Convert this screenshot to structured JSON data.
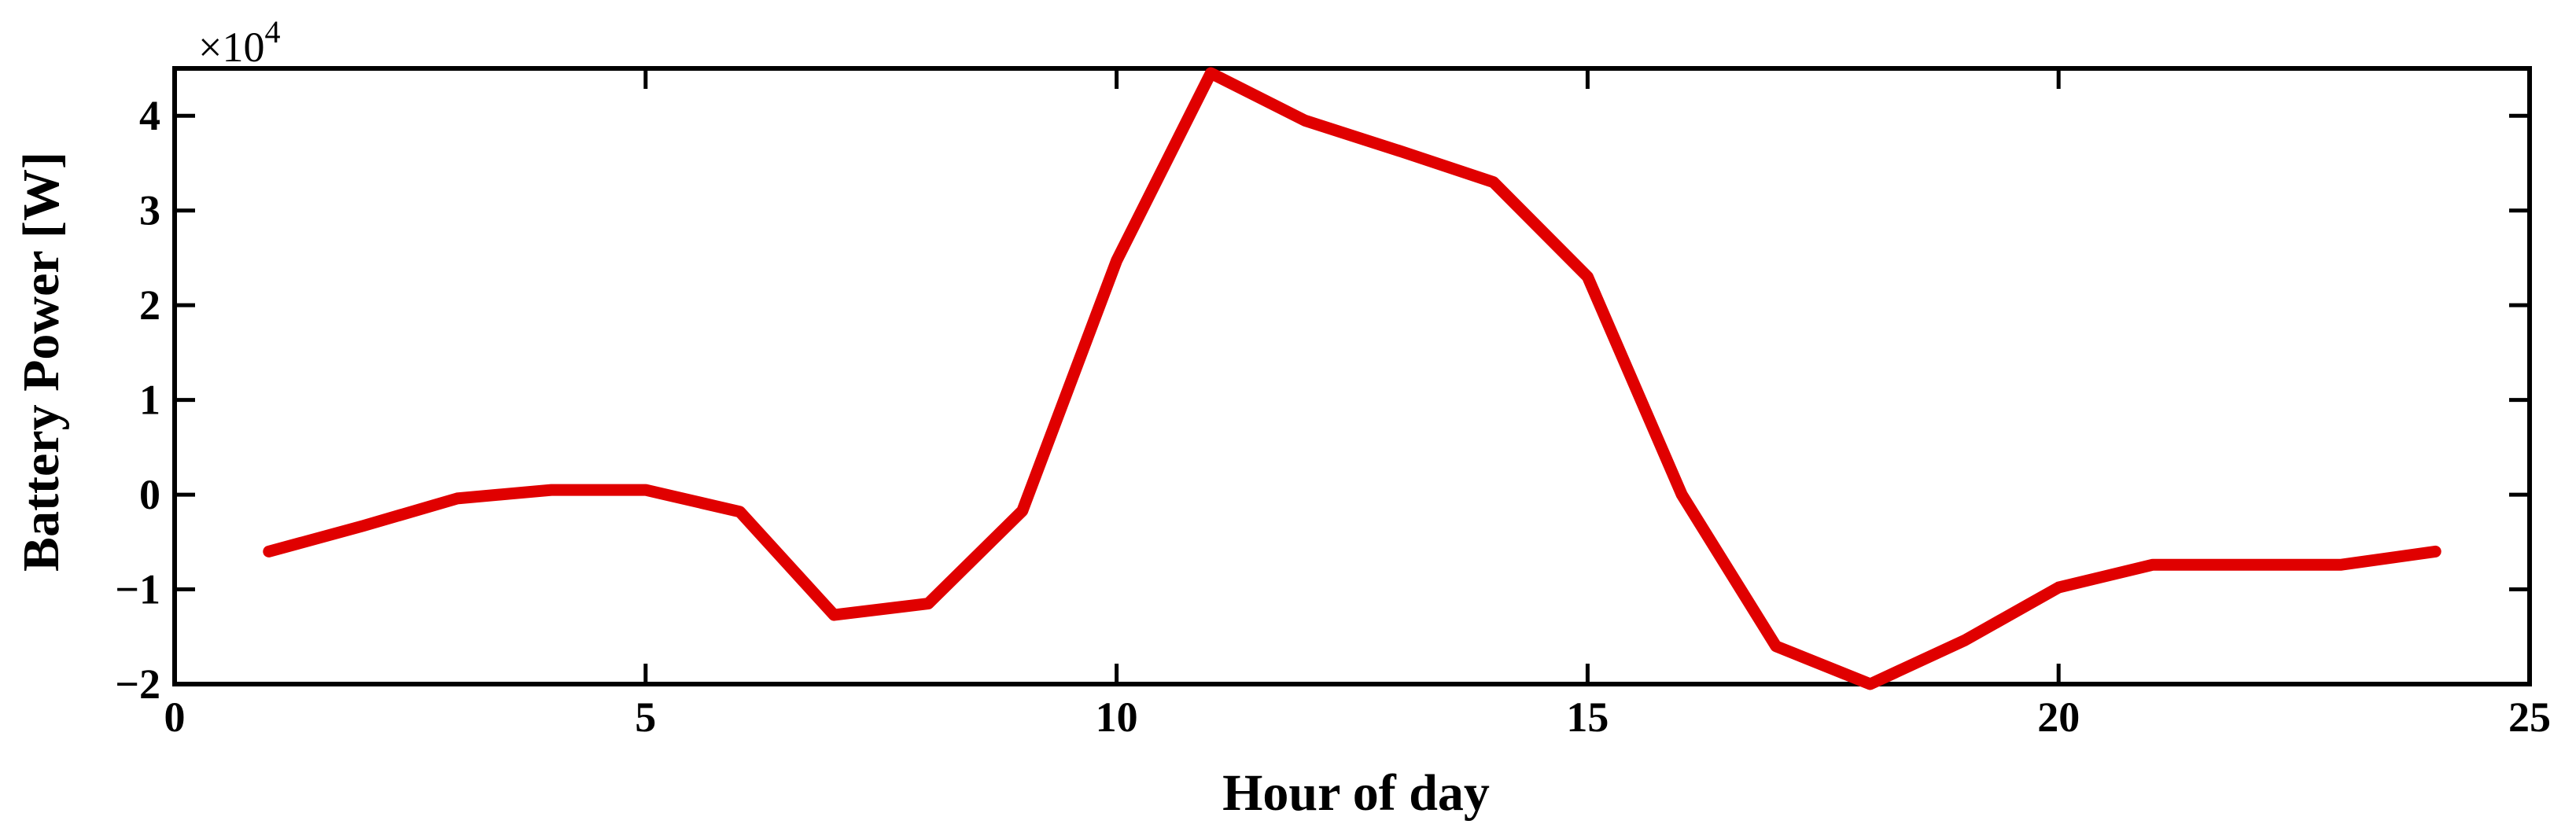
{
  "chart_data": {
    "type": "line",
    "title": "",
    "xlabel": "Hour of day",
    "ylabel": "Battery Power [W]",
    "y_multiplier_label": "×10",
    "y_multiplier_exponent": "4",
    "xlim": [
      0,
      25
    ],
    "ylim": [
      -2,
      4.5
    ],
    "xticks": [
      0,
      5,
      10,
      15,
      20,
      25
    ],
    "yticks": [
      -2,
      -1,
      0,
      1,
      2,
      3,
      4
    ],
    "xtick_labels": [
      "0",
      "5",
      "10",
      "15",
      "20",
      "25"
    ],
    "ytick_labels": [
      "−2",
      "−1",
      "0",
      "1",
      "2",
      "3",
      "4"
    ],
    "grid": false,
    "legend": false,
    "series": [
      {
        "color": "#e00000",
        "x": [
          1,
          2,
          3,
          4,
          5,
          6,
          7,
          8,
          9,
          10,
          11,
          12,
          13,
          14,
          15,
          16,
          17,
          18,
          19,
          20,
          21,
          22,
          23,
          24
        ],
        "y": [
          -0.6,
          -0.33,
          -0.04,
          0.05,
          0.05,
          -0.18,
          -1.27,
          -1.15,
          -0.17,
          2.47,
          4.45,
          3.95,
          3.63,
          3.3,
          2.3,
          0.0,
          -1.6,
          -2.0,
          -1.54,
          -0.98,
          -0.74,
          -0.74,
          -0.74,
          -0.6
        ]
      }
    ]
  }
}
